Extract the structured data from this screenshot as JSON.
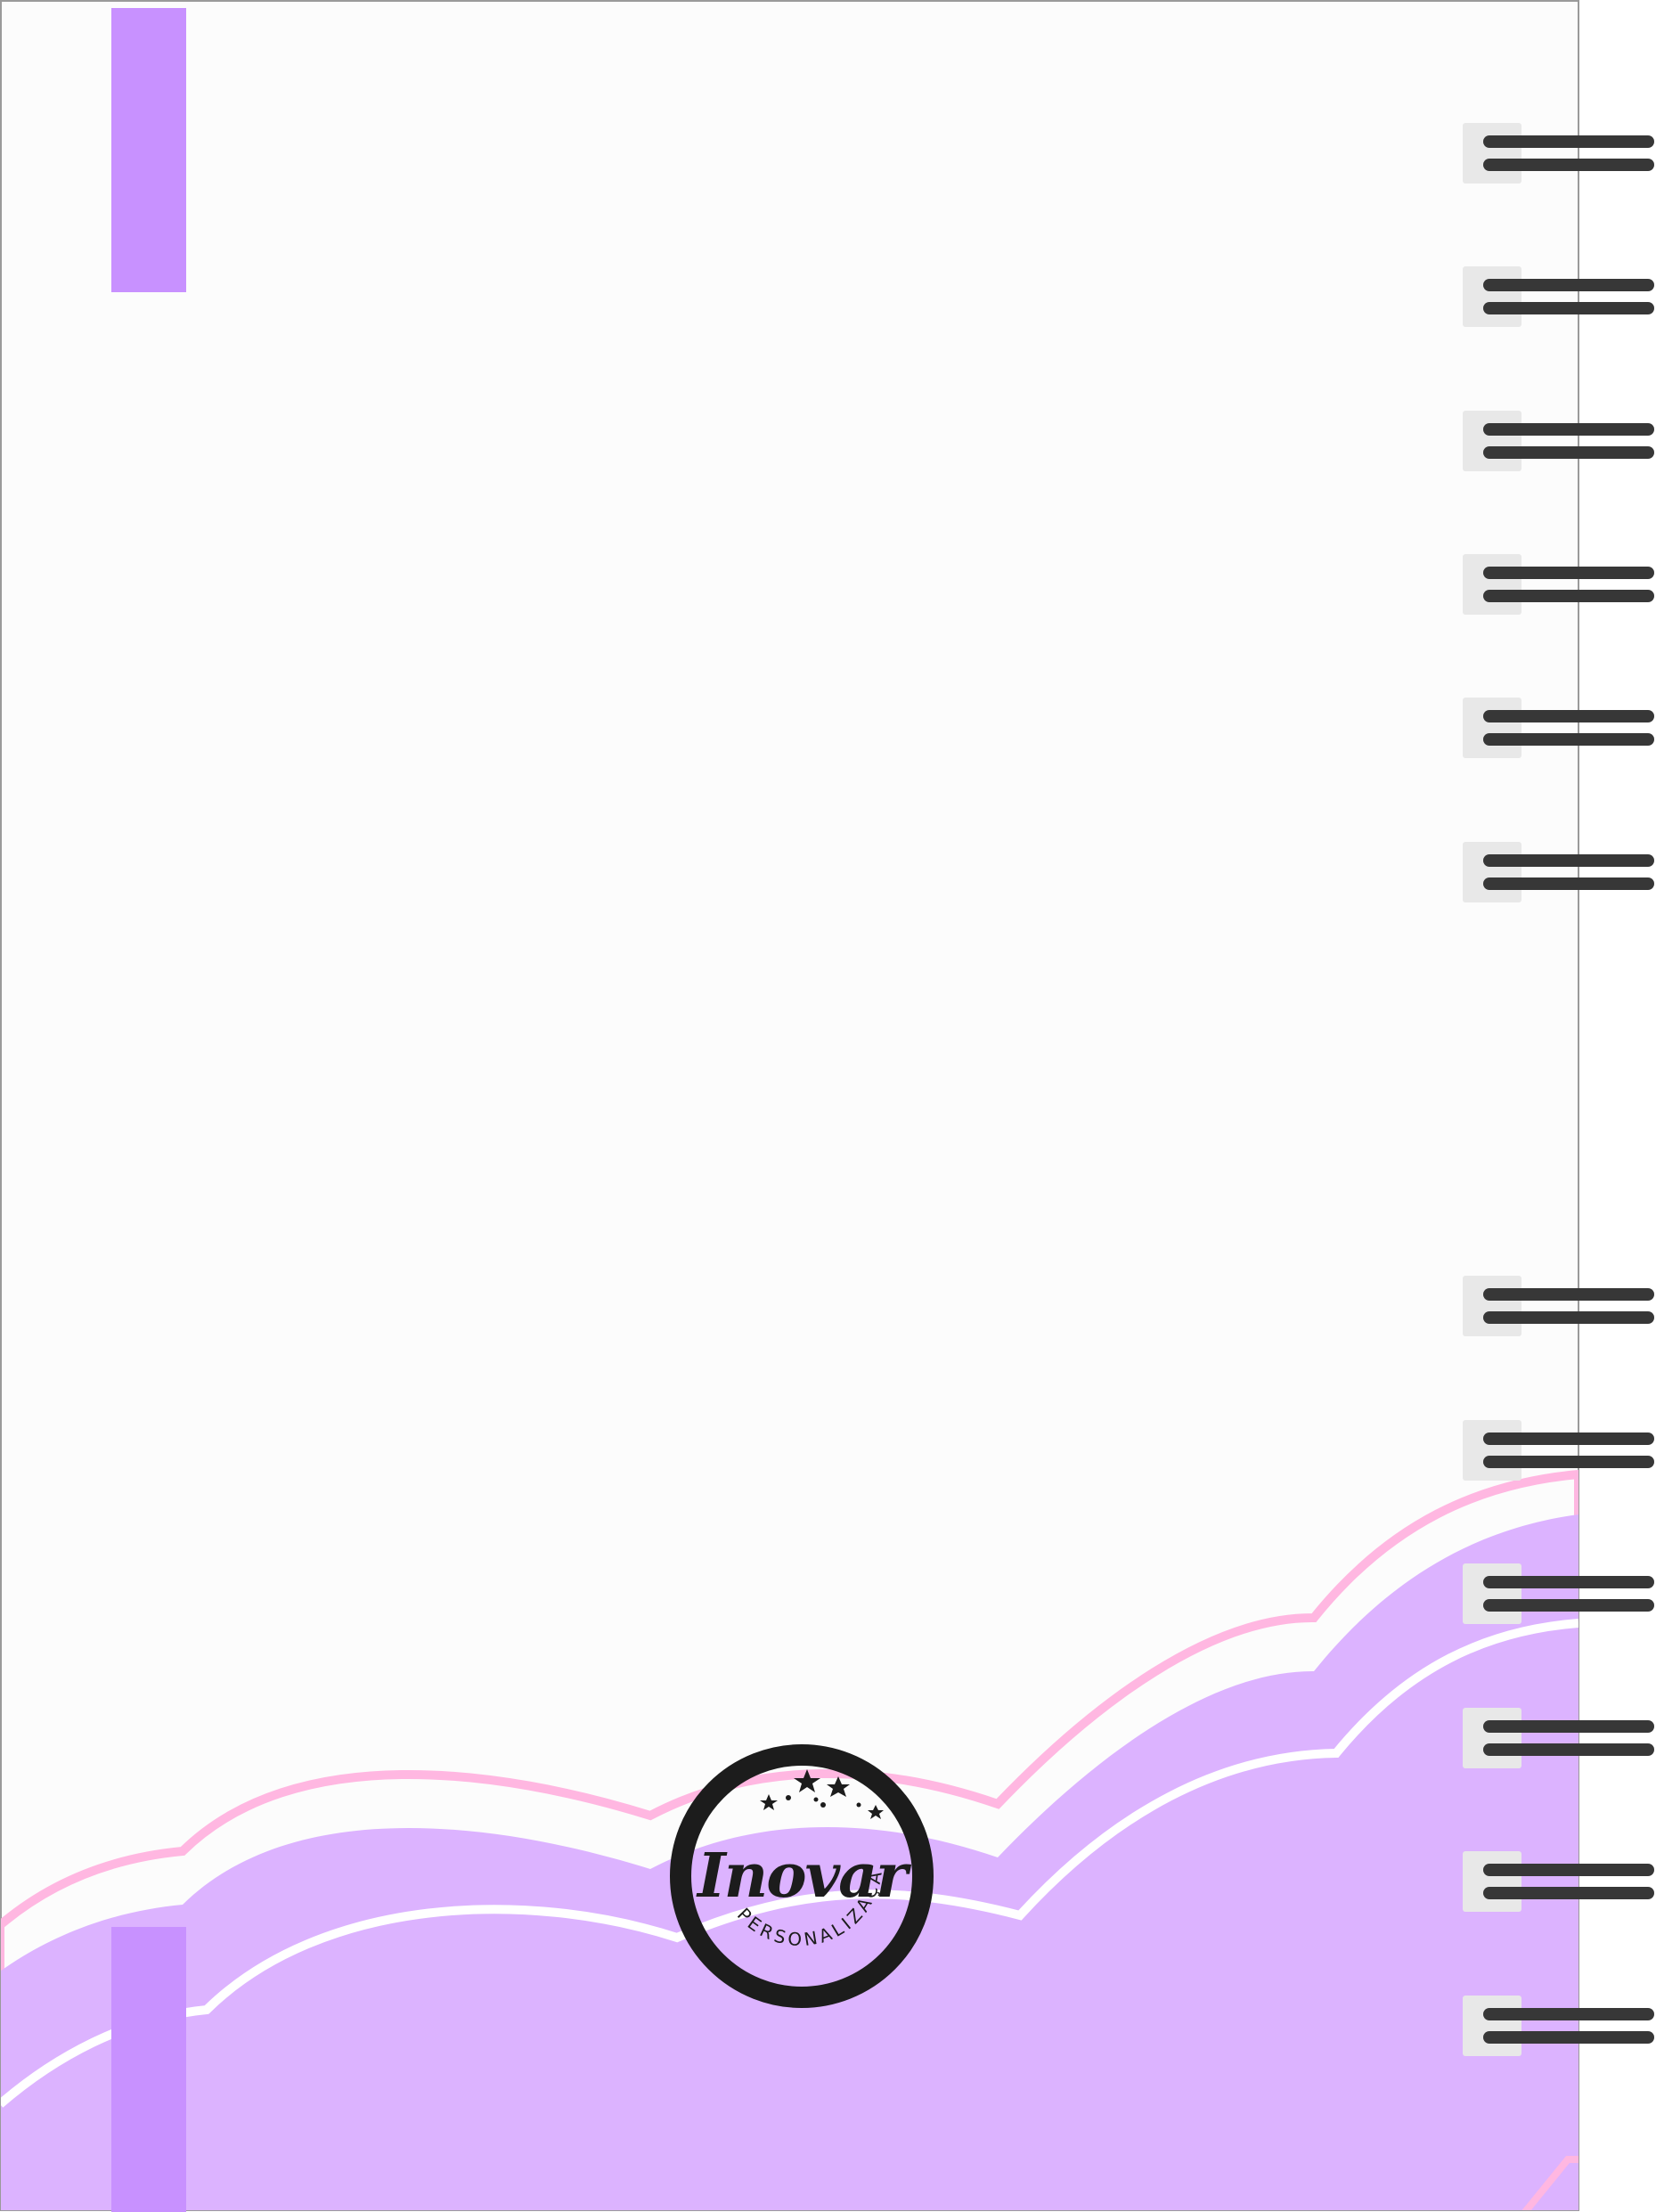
{
  "notebook": {
    "type": "spiral-notebook-back-cover",
    "colors": {
      "page": "#fcfcfc",
      "border": "#9a9a9a",
      "strap": "#c891ff",
      "cloud_fill": "#dcb3ff",
      "cloud_outline_pink": "#ffb7e1",
      "cloud_outline_white": "#ffffff",
      "spiral_wire": "#373737",
      "spiral_pad": "#e8e8e8",
      "seal": "#1c1c1c"
    },
    "spiral_rings_count": 12
  },
  "logo": {
    "brand": "Inovar",
    "tagline": "PERSONALIZAÇÃO",
    "icon": "stars-icon"
  }
}
